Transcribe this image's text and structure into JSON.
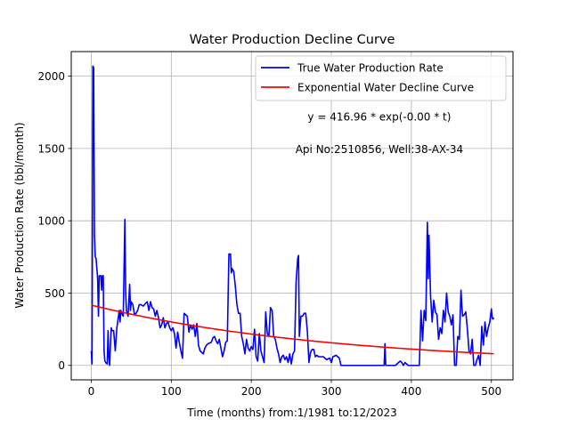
{
  "chart_data": {
    "type": "line",
    "title": "Water Production Decline Curve",
    "xlabel": "Time (months) from:1/1981 to:12/2023",
    "ylabel": "Water Production Rate (bbl/month)",
    "xlim": [
      -25,
      527
    ],
    "ylim": [
      -100,
      2170
    ],
    "xticks": [
      0,
      100,
      200,
      300,
      400,
      500
    ],
    "xtick_labels": [
      "0",
      "100",
      "200",
      "300",
      "400",
      "500"
    ],
    "yticks": [
      0,
      500,
      1000,
      1500,
      2000
    ],
    "ytick_labels": [
      "0",
      "500",
      "1000",
      "1500",
      "2000"
    ],
    "grid": true,
    "legend_position": "top-right",
    "annotations": [
      {
        "text": "y = 416.96 * exp(-0.00 * t)",
        "x": 360,
        "y": 1720
      },
      {
        "text": "Api No:2510856, Well:38-AX-34",
        "x": 360,
        "y": 1495
      }
    ],
    "series": [
      {
        "name": "True Water Production Rate",
        "color": "#0000ff",
        "kind": "line",
        "points": [
          [
            0,
            100
          ],
          [
            1,
            10
          ],
          [
            2,
            2070
          ],
          [
            3,
            2060
          ],
          [
            4,
            900
          ],
          [
            5,
            750
          ],
          [
            6,
            740
          ],
          [
            8,
            600
          ],
          [
            9,
            340
          ],
          [
            10,
            620
          ],
          [
            12,
            620
          ],
          [
            13,
            520
          ],
          [
            14,
            620
          ],
          [
            15,
            620
          ],
          [
            16,
            100
          ],
          [
            17,
            30
          ],
          [
            18,
            20
          ],
          [
            20,
            10
          ],
          [
            21,
            240
          ],
          [
            22,
            60
          ],
          [
            23,
            0
          ],
          [
            24,
            150
          ],
          [
            25,
            260
          ],
          [
            26,
            240
          ],
          [
            28,
            240
          ],
          [
            30,
            100
          ],
          [
            32,
            260
          ],
          [
            34,
            340
          ],
          [
            35,
            380
          ],
          [
            36,
            300
          ],
          [
            37,
            380
          ],
          [
            38,
            360
          ],
          [
            40,
            340
          ],
          [
            42,
            1010
          ],
          [
            43,
            500
          ],
          [
            44,
            380
          ],
          [
            46,
            340
          ],
          [
            48,
            560
          ],
          [
            49,
            380
          ],
          [
            50,
            440
          ],
          [
            52,
            420
          ],
          [
            54,
            350
          ],
          [
            56,
            360
          ],
          [
            58,
            380
          ],
          [
            60,
            420
          ],
          [
            62,
            420
          ],
          [
            65,
            410
          ],
          [
            68,
            430
          ],
          [
            70,
            440
          ],
          [
            72,
            380
          ],
          [
            74,
            440
          ],
          [
            76,
            400
          ],
          [
            78,
            390
          ],
          [
            80,
            340
          ],
          [
            82,
            380
          ],
          [
            84,
            330
          ],
          [
            86,
            260
          ],
          [
            88,
            280
          ],
          [
            90,
            330
          ],
          [
            92,
            260
          ],
          [
            94,
            290
          ],
          [
            96,
            300
          ],
          [
            98,
            260
          ],
          [
            100,
            240
          ],
          [
            102,
            260
          ],
          [
            104,
            220
          ],
          [
            106,
            120
          ],
          [
            108,
            230
          ],
          [
            110,
            160
          ],
          [
            112,
            100
          ],
          [
            114,
            50
          ],
          [
            116,
            360
          ],
          [
            118,
            350
          ],
          [
            120,
            340
          ],
          [
            122,
            230
          ],
          [
            124,
            280
          ],
          [
            126,
            250
          ],
          [
            128,
            280
          ],
          [
            130,
            200
          ],
          [
            132,
            290
          ],
          [
            134,
            140
          ],
          [
            136,
            100
          ],
          [
            138,
            90
          ],
          [
            140,
            80
          ],
          [
            142,
            120
          ],
          [
            144,
            140
          ],
          [
            146,
            150
          ],
          [
            150,
            160
          ],
          [
            152,
            190
          ],
          [
            154,
            200
          ],
          [
            156,
            170
          ],
          [
            158,
            150
          ],
          [
            160,
            180
          ],
          [
            162,
            120
          ],
          [
            164,
            60
          ],
          [
            166,
            100
          ],
          [
            168,
            160
          ],
          [
            170,
            170
          ],
          [
            172,
            770
          ],
          [
            174,
            770
          ],
          [
            175,
            640
          ],
          [
            176,
            670
          ],
          [
            178,
            650
          ],
          [
            180,
            550
          ],
          [
            182,
            420
          ],
          [
            184,
            360
          ],
          [
            186,
            360
          ],
          [
            188,
            200
          ],
          [
            190,
            150
          ],
          [
            192,
            80
          ],
          [
            194,
            180
          ],
          [
            196,
            120
          ],
          [
            198,
            100
          ],
          [
            200,
            130
          ],
          [
            202,
            110
          ],
          [
            204,
            250
          ],
          [
            206,
            60
          ],
          [
            208,
            30
          ],
          [
            210,
            220
          ],
          [
            212,
            100
          ],
          [
            214,
            60
          ],
          [
            216,
            20
          ],
          [
            218,
            370
          ],
          [
            220,
            220
          ],
          [
            222,
            200
          ],
          [
            224,
            400
          ],
          [
            226,
            380
          ],
          [
            228,
            200
          ],
          [
            230,
            180
          ],
          [
            232,
            120
          ],
          [
            234,
            80
          ],
          [
            236,
            20
          ],
          [
            238,
            60
          ],
          [
            240,
            70
          ],
          [
            242,
            40
          ],
          [
            244,
            60
          ],
          [
            246,
            20
          ],
          [
            248,
            80
          ],
          [
            250,
            10
          ],
          [
            252,
            80
          ],
          [
            254,
            100
          ],
          [
            256,
            580
          ],
          [
            258,
            740
          ],
          [
            259,
            760
          ],
          [
            260,
            200
          ],
          [
            262,
            340
          ],
          [
            264,
            340
          ],
          [
            266,
            360
          ],
          [
            268,
            360
          ],
          [
            270,
            240
          ],
          [
            272,
            20
          ],
          [
            274,
            90
          ],
          [
            276,
            110
          ],
          [
            278,
            110
          ],
          [
            280,
            60
          ],
          [
            282,
            70
          ],
          [
            284,
            60
          ],
          [
            286,
            60
          ],
          [
            290,
            60
          ],
          [
            294,
            40
          ],
          [
            298,
            50
          ],
          [
            300,
            20
          ],
          [
            302,
            60
          ],
          [
            306,
            70
          ],
          [
            310,
            50
          ],
          [
            312,
            0
          ],
          [
            320,
            0
          ],
          [
            340,
            0
          ],
          [
            360,
            0
          ],
          [
            366,
            0
          ],
          [
            367,
            150
          ],
          [
            368,
            0
          ],
          [
            380,
            0
          ],
          [
            386,
            30
          ],
          [
            388,
            20
          ],
          [
            390,
            0
          ],
          [
            392,
            20
          ],
          [
            396,
            0
          ],
          [
            410,
            0
          ],
          [
            412,
            380
          ],
          [
            414,
            170
          ],
          [
            416,
            380
          ],
          [
            418,
            310
          ],
          [
            420,
            990
          ],
          [
            421,
            600
          ],
          [
            422,
            900
          ],
          [
            424,
            480
          ],
          [
            426,
            300
          ],
          [
            428,
            450
          ],
          [
            430,
            370
          ],
          [
            432,
            350
          ],
          [
            434,
            180
          ],
          [
            436,
            260
          ],
          [
            438,
            220
          ],
          [
            440,
            380
          ],
          [
            442,
            300
          ],
          [
            444,
            500
          ],
          [
            446,
            370
          ],
          [
            448,
            340
          ],
          [
            450,
            280
          ],
          [
            452,
            350
          ],
          [
            454,
            0
          ],
          [
            456,
            0
          ],
          [
            458,
            200
          ],
          [
            460,
            180
          ],
          [
            462,
            520
          ],
          [
            463,
            420
          ],
          [
            464,
            340
          ],
          [
            466,
            350
          ],
          [
            468,
            370
          ],
          [
            470,
            250
          ],
          [
            472,
            100
          ],
          [
            474,
            80
          ],
          [
            476,
            180
          ],
          [
            478,
            0
          ],
          [
            480,
            0
          ],
          [
            482,
            40
          ],
          [
            484,
            70
          ],
          [
            486,
            0
          ],
          [
            488,
            270
          ],
          [
            490,
            140
          ],
          [
            492,
            300
          ],
          [
            494,
            200
          ],
          [
            496,
            260
          ],
          [
            498,
            300
          ],
          [
            500,
            390
          ],
          [
            501,
            330
          ],
          [
            502,
            320
          ],
          [
            503,
            330
          ]
        ]
      },
      {
        "name": "Exponential Water Decline Curve",
        "color": "#ff0000",
        "kind": "exponential",
        "a": 416.96,
        "b": -0.00327,
        "t_range": [
          0,
          503
        ]
      }
    ]
  }
}
